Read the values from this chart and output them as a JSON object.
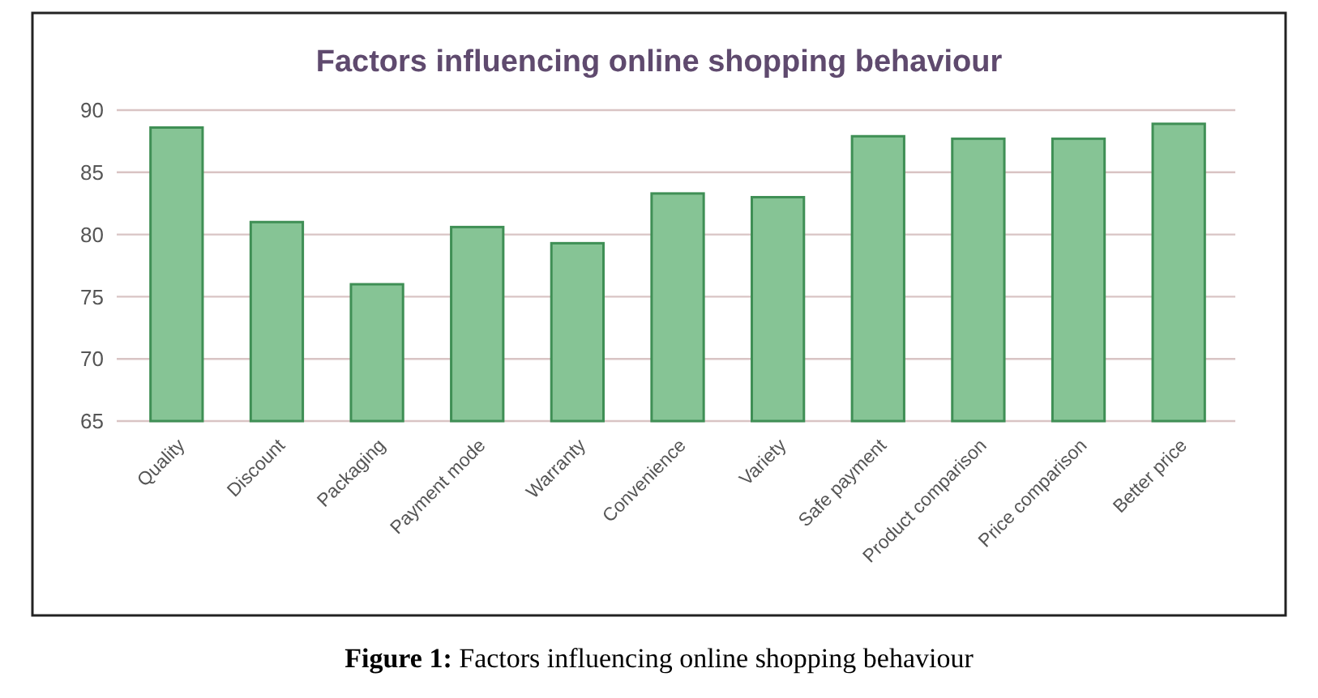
{
  "chart_data": {
    "type": "bar",
    "title": "Factors influencing online shopping behaviour",
    "categories": [
      "Quality",
      "Discount",
      "Packaging",
      "Payment mode",
      "Warranty",
      "Convenience",
      "Variety",
      "Safe payment",
      "Product comparison",
      "Price comparison",
      "Better price"
    ],
    "values": [
      88.6,
      81.0,
      76.0,
      80.6,
      79.3,
      83.3,
      83.0,
      87.9,
      87.7,
      87.7,
      88.9
    ],
    "color": "#86c495",
    "ylim": [
      65,
      90
    ],
    "yticks": [
      65,
      70,
      75,
      80,
      85,
      90
    ],
    "grid": "y",
    "annotations": [
      "Figure 1: Factors influencing online shopping behaviour"
    ]
  }
}
